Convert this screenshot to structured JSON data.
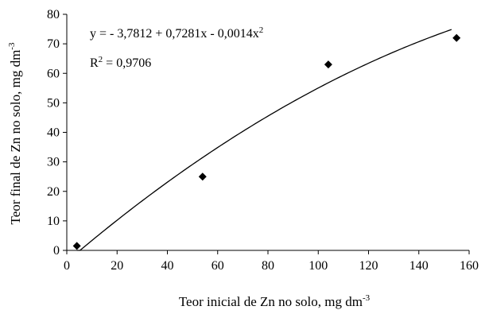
{
  "chart_data": {
    "type": "scatter",
    "x": [
      4,
      54,
      104,
      155
    ],
    "y": [
      1.5,
      25,
      63,
      72
    ],
    "fit": {
      "type": "quadratic",
      "intercept": -3.7812,
      "b1": 0.7281,
      "b2": -0.0014,
      "x_range": [
        4,
        153
      ]
    },
    "xlim": [
      0,
      160
    ],
    "ylim": [
      0,
      80
    ],
    "xticks": [
      0,
      20,
      40,
      60,
      80,
      100,
      120,
      140,
      160
    ],
    "yticks": [
      0,
      10,
      20,
      30,
      40,
      50,
      60,
      70,
      80
    ],
    "xticks_labels": [
      "0",
      "20",
      "40",
      "60",
      "80",
      "100",
      "120",
      "140",
      "160"
    ],
    "yticks_labels": [
      "0",
      "10",
      "20",
      "30",
      "40",
      "50",
      "60",
      "70",
      "80"
    ],
    "xlabel": "Teor inicial de Zn no solo, mg dm",
    "xlabel_sup": "-3",
    "ylabel": "Teor final de Zn no solo, mg dm",
    "ylabel_sup": "-3",
    "equation": "y = - 3,7812 + 0,7281x - 0,0014x",
    "equation_sup": "2",
    "r2_prefix": "R",
    "r2_sup": "2",
    "r2_value": " = 0,9706",
    "grid": false,
    "marker": "diamond",
    "colors": {
      "marker": "#000000",
      "line": "#000000",
      "axis": "#000000"
    }
  }
}
